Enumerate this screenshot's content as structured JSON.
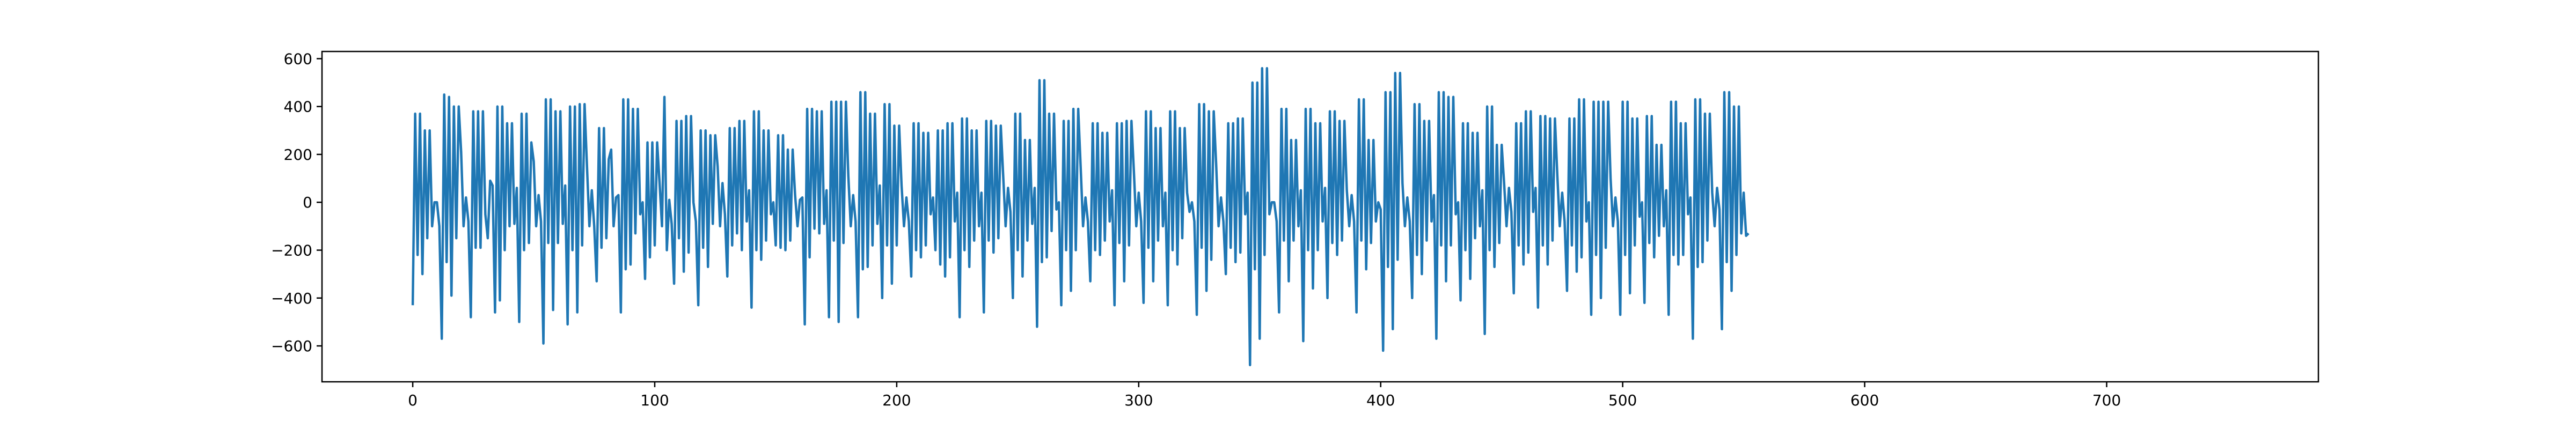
{
  "chart_data": {
    "type": "line",
    "title": "",
    "xlabel": "",
    "ylabel": "",
    "xlim": [
      -37.5,
      787.5
    ],
    "ylim": [
      -750,
      630
    ],
    "xticks": [
      0,
      100,
      200,
      300,
      400,
      500,
      600,
      700
    ],
    "yticks": [
      -600,
      -400,
      -200,
      0,
      200,
      400,
      600
    ],
    "grid": false,
    "legend": "none",
    "series": [
      {
        "color": "#1f77b4",
        "x_start": 0,
        "x_step": 1,
        "values": [
          -430,
          370,
          -220,
          370,
          -300,
          300,
          -150,
          300,
          -100,
          0,
          0,
          -100,
          -570,
          450,
          -250,
          440,
          -390,
          400,
          -150,
          400,
          210,
          -100,
          20,
          -80,
          -480,
          380,
          -190,
          380,
          -190,
          380,
          -50,
          -150,
          90,
          70,
          -460,
          400,
          -410,
          400,
          -200,
          330,
          -100,
          330,
          -90,
          60,
          -500,
          370,
          -200,
          370,
          -170,
          250,
          170,
          -100,
          30,
          -80,
          -590,
          430,
          -170,
          430,
          -450,
          380,
          -170,
          380,
          -90,
          70,
          -510,
          400,
          -200,
          400,
          -460,
          410,
          -180,
          410,
          150,
          -100,
          50,
          -100,
          -330,
          310,
          -190,
          310,
          -150,
          180,
          220,
          -100,
          20,
          30,
          -460,
          430,
          -280,
          430,
          -260,
          390,
          -130,
          390,
          -50,
          0,
          -320,
          250,
          -230,
          250,
          -180,
          250,
          80,
          -100,
          440,
          -200,
          10,
          -90,
          -340,
          340,
          -150,
          340,
          -290,
          360,
          -210,
          360,
          0,
          -80,
          -430,
          300,
          -190,
          300,
          -270,
          280,
          -90,
          280,
          150,
          -100,
          80,
          -50,
          -310,
          310,
          -180,
          310,
          -130,
          340,
          -200,
          340,
          -80,
          50,
          -440,
          380,
          -200,
          380,
          -240,
          300,
          -160,
          300,
          -50,
          0,
          -180,
          280,
          -190,
          280,
          -200,
          220,
          -160,
          220,
          30,
          -100,
          10,
          20,
          -510,
          390,
          -230,
          390,
          -110,
          380,
          -130,
          380,
          -90,
          50,
          -480,
          420,
          -160,
          420,
          -500,
          420,
          -170,
          420,
          110,
          -100,
          30,
          -80,
          -480,
          460,
          -280,
          460,
          -270,
          370,
          -180,
          370,
          -90,
          70,
          -400,
          410,
          -180,
          410,
          -340,
          320,
          -180,
          320,
          70,
          -100,
          20,
          -80,
          -310,
          330,
          -200,
          330,
          -230,
          290,
          -180,
          290,
          -50,
          20,
          -200,
          300,
          -260,
          300,
          -310,
          330,
          -230,
          330,
          -80,
          40,
          -480,
          350,
          -200,
          350,
          -270,
          300,
          -160,
          300,
          -100,
          40,
          -460,
          340,
          -160,
          340,
          -210,
          320,
          -150,
          320,
          110,
          -100,
          60,
          -40,
          -400,
          370,
          -200,
          370,
          -310,
          260,
          -160,
          260,
          -90,
          60,
          -520,
          510,
          -250,
          510,
          -230,
          370,
          -120,
          370,
          -30,
          0,
          -430,
          340,
          -200,
          340,
          -370,
          390,
          -200,
          390,
          150,
          -100,
          20,
          -80,
          -330,
          330,
          -200,
          330,
          -220,
          290,
          -160,
          290,
          -80,
          50,
          -430,
          330,
          -170,
          330,
          -330,
          340,
          -180,
          340,
          130,
          -100,
          40,
          -80,
          -420,
          380,
          -190,
          380,
          -330,
          310,
          -160,
          310,
          -100,
          40,
          -430,
          380,
          -200,
          380,
          -260,
          310,
          -150,
          310,
          40,
          -40,
          0,
          -80,
          -470,
          410,
          -190,
          410,
          -370,
          380,
          -240,
          380,
          160,
          -100,
          20,
          -80,
          -300,
          330,
          -190,
          330,
          -250,
          350,
          -210,
          350,
          -50,
          40,
          -680,
          500,
          -280,
          500,
          -570,
          560,
          -220,
          560,
          -50,
          0,
          0,
          -80,
          -460,
          390,
          -160,
          390,
          -330,
          260,
          -160,
          260,
          -100,
          50,
          -580,
          390,
          -200,
          390,
          -360,
          330,
          -200,
          330,
          -80,
          60,
          -400,
          380,
          -170,
          380,
          -220,
          340,
          -160,
          340,
          50,
          -100,
          30,
          -80,
          -460,
          430,
          -160,
          430,
          -280,
          260,
          -170,
          260,
          -80,
          0,
          -30,
          -620,
          460,
          -270,
          460,
          -530,
          540,
          -240,
          540,
          80,
          -100,
          20,
          -80,
          -400,
          410,
          -220,
          410,
          -300,
          340,
          -160,
          340,
          -80,
          30,
          -570,
          460,
          -180,
          460,
          -330,
          440,
          -180,
          440,
          -50,
          0,
          -410,
          330,
          -200,
          330,
          -320,
          290,
          -150,
          290,
          -100,
          50,
          -550,
          400,
          -200,
          400,
          -270,
          240,
          -170,
          240,
          80,
          -100,
          60,
          -40,
          -380,
          330,
          -180,
          330,
          -260,
          380,
          -210,
          380,
          -40,
          60,
          -440,
          360,
          -180,
          360,
          -260,
          350,
          -160,
          350,
          110,
          -100,
          40,
          -80,
          -370,
          350,
          -180,
          350,
          -290,
          430,
          -230,
          430,
          -80,
          0,
          -470,
          420,
          -220,
          420,
          -400,
          420,
          -190,
          420,
          100,
          -100,
          20,
          -80,
          -470,
          420,
          -220,
          420,
          -380,
          350,
          -180,
          350,
          -60,
          0,
          -420,
          360,
          -170,
          360,
          -230,
          240,
          -140,
          240,
          -100,
          50,
          -470,
          420,
          -220,
          420,
          -260,
          330,
          -220,
          330,
          -50,
          20,
          -570,
          430,
          -270,
          430,
          -250,
          370,
          -160,
          370,
          40,
          -100,
          60,
          -30,
          -530,
          460,
          -250,
          460,
          -370,
          400,
          -220,
          400,
          -130,
          40,
          -140,
          -130
        ]
      }
    ]
  }
}
